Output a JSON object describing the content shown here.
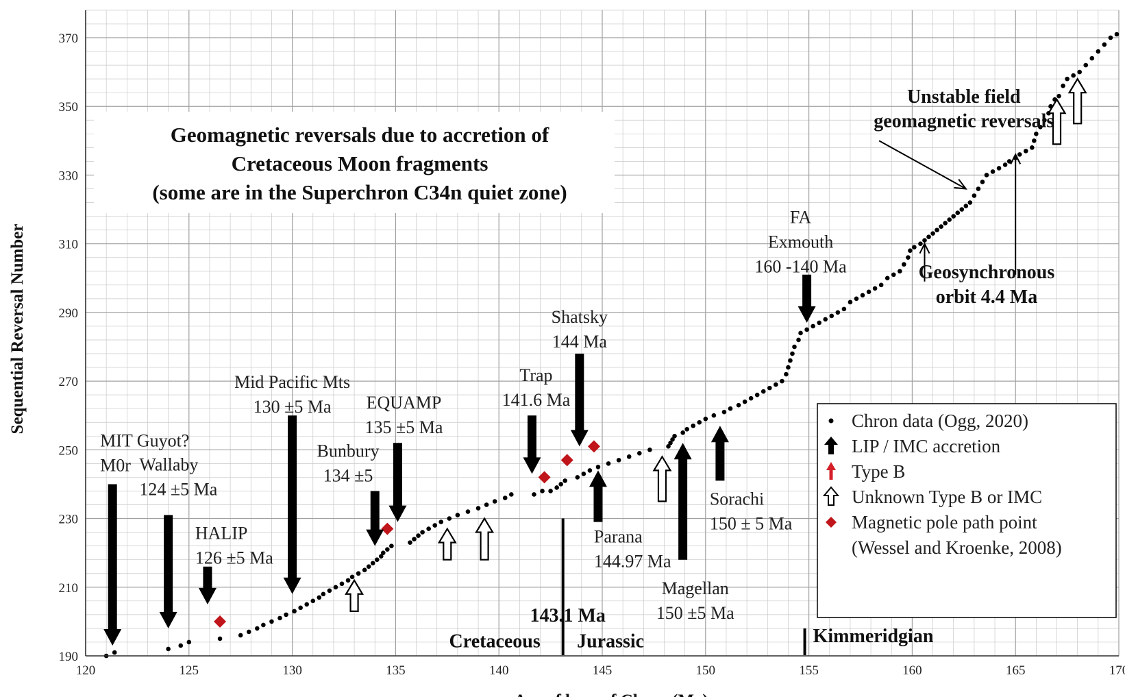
{
  "chart_data": {
    "type": "scatter",
    "title": "Geomagnetic reversals due to accretion of Cretaceous Moon fragments (some are in the Superchron C34n quiet zone)",
    "title_lines": [
      "Geomagnetic reversals due to accretion of",
      "Cretaceous Moon fragments",
      "(some are in the Superchron C34n quiet zone)"
    ],
    "xlabel": "Age of base of Chron (Ma)",
    "ylabel": "Sequential Reversal Number",
    "xlim": [
      120,
      170
    ],
    "ylim": [
      190,
      378
    ],
    "x_ticks": [
      120,
      125,
      130,
      135,
      140,
      145,
      150,
      155,
      160,
      165,
      170
    ],
    "y_ticks": [
      190,
      210,
      230,
      250,
      270,
      290,
      310,
      330,
      350,
      370
    ],
    "grid": true,
    "legend_position": "bottom-right",
    "series": [
      {
        "name": "Chron data (Ogg, 2020)",
        "marker": "dot",
        "color": "#000000",
        "points": [
          [
            121.0,
            190
          ],
          [
            121.4,
            191
          ],
          [
            124.0,
            192
          ],
          [
            124.6,
            193
          ],
          [
            125.0,
            194
          ],
          [
            126.5,
            195
          ],
          [
            127.5,
            196
          ],
          [
            127.9,
            197
          ],
          [
            128.3,
            198
          ],
          [
            128.6,
            199
          ],
          [
            129.0,
            200
          ],
          [
            129.4,
            201
          ],
          [
            129.7,
            202
          ],
          [
            130.1,
            203
          ],
          [
            130.4,
            204
          ],
          [
            130.7,
            205
          ],
          [
            131.0,
            206
          ],
          [
            131.3,
            207
          ],
          [
            131.5,
            208
          ],
          [
            131.8,
            209
          ],
          [
            132.1,
            210
          ],
          [
            132.4,
            211
          ],
          [
            132.7,
            212
          ],
          [
            132.9,
            213
          ],
          [
            133.2,
            214
          ],
          [
            133.5,
            215
          ],
          [
            133.7,
            216
          ],
          [
            133.9,
            217
          ],
          [
            134.1,
            218
          ],
          [
            134.3,
            219
          ],
          [
            134.4,
            220
          ],
          [
            134.6,
            221
          ],
          [
            134.8,
            222
          ],
          [
            135.7,
            223
          ],
          [
            135.9,
            224
          ],
          [
            136.1,
            225
          ],
          [
            136.3,
            226
          ],
          [
            136.6,
            227
          ],
          [
            136.9,
            228
          ],
          [
            137.2,
            229
          ],
          [
            137.6,
            230
          ],
          [
            138.0,
            231
          ],
          [
            138.5,
            232
          ],
          [
            139.0,
            233
          ],
          [
            139.4,
            234
          ],
          [
            139.8,
            235
          ],
          [
            140.3,
            236
          ],
          [
            140.6,
            237
          ],
          [
            141.7,
            237
          ],
          [
            142.1,
            238
          ],
          [
            142.5,
            238
          ],
          [
            142.8,
            239
          ],
          [
            143.0,
            240
          ],
          [
            143.2,
            241
          ],
          [
            143.8,
            242
          ],
          [
            144.1,
            243
          ],
          [
            144.4,
            244
          ],
          [
            144.8,
            245
          ],
          [
            145.3,
            246
          ],
          [
            145.8,
            247
          ],
          [
            146.3,
            248
          ],
          [
            146.8,
            249
          ],
          [
            147.3,
            250
          ],
          [
            148.2,
            251
          ],
          [
            148.3,
            252
          ],
          [
            148.4,
            253
          ],
          [
            148.5,
            254
          ],
          [
            148.9,
            255
          ],
          [
            149.1,
            256
          ],
          [
            149.4,
            257
          ],
          [
            149.7,
            258
          ],
          [
            150.0,
            259
          ],
          [
            150.4,
            260
          ],
          [
            150.9,
            261
          ],
          [
            151.2,
            262
          ],
          [
            151.6,
            263
          ],
          [
            151.9,
            264
          ],
          [
            152.2,
            265
          ],
          [
            152.5,
            266
          ],
          [
            152.8,
            267
          ],
          [
            153.1,
            268
          ],
          [
            153.4,
            269
          ],
          [
            153.7,
            270
          ],
          [
            153.9,
            272
          ],
          [
            154.0,
            274
          ],
          [
            154.1,
            276
          ],
          [
            154.2,
            278
          ],
          [
            154.3,
            280
          ],
          [
            154.5,
            282
          ],
          [
            154.6,
            284
          ],
          [
            154.9,
            285
          ],
          [
            155.2,
            286
          ],
          [
            155.5,
            287
          ],
          [
            155.8,
            288
          ],
          [
            156.1,
            289
          ],
          [
            156.4,
            290
          ],
          [
            156.7,
            291
          ],
          [
            157.0,
            293
          ],
          [
            157.3,
            294
          ],
          [
            157.6,
            295
          ],
          [
            157.9,
            296
          ],
          [
            158.2,
            297
          ],
          [
            158.5,
            298
          ],
          [
            158.8,
            300
          ],
          [
            159.1,
            301
          ],
          [
            159.4,
            302
          ],
          [
            159.6,
            304
          ],
          [
            159.8,
            306
          ],
          [
            159.9,
            308
          ],
          [
            160.1,
            309
          ],
          [
            160.4,
            310
          ],
          [
            160.6,
            311
          ],
          [
            160.8,
            312
          ],
          [
            161.0,
            313
          ],
          [
            161.2,
            314
          ],
          [
            161.4,
            315
          ],
          [
            161.6,
            316
          ],
          [
            161.8,
            317
          ],
          [
            162.0,
            318
          ],
          [
            162.2,
            319
          ],
          [
            162.4,
            320
          ],
          [
            162.6,
            321
          ],
          [
            162.8,
            322
          ],
          [
            163.0,
            324
          ],
          [
            163.2,
            326
          ],
          [
            163.4,
            328
          ],
          [
            163.6,
            330
          ],
          [
            163.9,
            331
          ],
          [
            164.2,
            332
          ],
          [
            164.5,
            333
          ],
          [
            164.7,
            334
          ],
          [
            165.0,
            335
          ],
          [
            165.2,
            336
          ],
          [
            165.5,
            337
          ],
          [
            165.8,
            338
          ],
          [
            165.9,
            340
          ],
          [
            166.0,
            342
          ],
          [
            166.2,
            344
          ],
          [
            166.4,
            346
          ],
          [
            166.6,
            348
          ],
          [
            166.7,
            350
          ],
          [
            166.9,
            352
          ],
          [
            167.1,
            353
          ],
          [
            167.3,
            356
          ],
          [
            167.5,
            358
          ],
          [
            167.8,
            359
          ],
          [
            168.1,
            360
          ],
          [
            168.4,
            362
          ],
          [
            168.7,
            364
          ],
          [
            169.0,
            366
          ],
          [
            169.3,
            368
          ],
          [
            169.6,
            370
          ],
          [
            169.9,
            371
          ]
        ]
      },
      {
        "name": "Magnetic pole path point (Wessel and Kroenke, 2008)",
        "marker": "diamond",
        "color": "#c0151b",
        "points": [
          [
            126.5,
            200
          ],
          [
            134.6,
            227
          ],
          [
            142.2,
            242
          ],
          [
            143.3,
            247
          ],
          [
            144.6,
            251
          ]
        ]
      }
    ],
    "arrows_filled": [
      {
        "x": 121.3,
        "y_from": 240,
        "y_to": 193
      },
      {
        "x": 124.0,
        "y_from": 231,
        "y_to": 198
      },
      {
        "x": 125.9,
        "y_from": 216,
        "y_to": 205
      },
      {
        "x": 130.0,
        "y_from": 260,
        "y_to": 208
      },
      {
        "x": 134.0,
        "y_from": 238,
        "y_to": 222
      },
      {
        "x": 135.1,
        "y_from": 252,
        "y_to": 229
      },
      {
        "x": 141.6,
        "y_from": 260,
        "y_to": 243
      },
      {
        "x": 143.9,
        "y_from": 278,
        "y_to": 251
      },
      {
        "x": 144.8,
        "y_from": 229,
        "y_to": 244
      },
      {
        "x": 148.9,
        "y_from": 218,
        "y_to": 252
      },
      {
        "x": 150.7,
        "y_from": 241,
        "y_to": 257
      },
      {
        "x": 154.9,
        "y_from": 301,
        "y_to": 287
      }
    ],
    "arrows_open": [
      {
        "x": 133.0,
        "y_from": 203,
        "y_to": 212
      },
      {
        "x": 137.5,
        "y_from": 218,
        "y_to": 227
      },
      {
        "x": 139.3,
        "y_from": 218,
        "y_to": 230
      },
      {
        "x": 147.9,
        "y_from": 235,
        "y_to": 248
      },
      {
        "x": 167.0,
        "y_from": 339,
        "y_to": 352
      },
      {
        "x": 168.0,
        "y_from": 345,
        "y_to": 358
      }
    ],
    "arrows_thin": [
      {
        "x": 160.6,
        "y_from": 299,
        "y_to": 310
      },
      {
        "x": 165.0,
        "y_from": 301,
        "y_to": 336
      }
    ],
    "annotations": [
      {
        "lines": [
          "MIT Guyot?",
          "M0r"
        ],
        "x": 120.7,
        "y": 251,
        "anchor": "start",
        "style": "normal"
      },
      {
        "lines": [
          "Wallaby",
          "124 ±5 Ma"
        ],
        "x": 122.6,
        "y": 244,
        "anchor": "start",
        "style": "normal"
      },
      {
        "lines": [
          "HALIP",
          "126 ±5 Ma"
        ],
        "x": 125.3,
        "y": 224,
        "anchor": "start",
        "style": "normal"
      },
      {
        "lines": [
          "Mid Pacific Mts",
          "130 ±5 Ma"
        ],
        "x": 130.0,
        "y": 268,
        "anchor": "middle",
        "style": "normal"
      },
      {
        "lines": [
          "Bunbury",
          "134 ±5"
        ],
        "x": 132.7,
        "y": 248,
        "anchor": "middle",
        "style": "normal"
      },
      {
        "lines": [
          "EQUAMP",
          "135 ±5 Ma"
        ],
        "x": 135.4,
        "y": 262,
        "anchor": "middle",
        "style": "normal"
      },
      {
        "lines": [
          "Trap",
          "141.6 Ma"
        ],
        "x": 141.8,
        "y": 270,
        "anchor": "middle",
        "style": "normal"
      },
      {
        "lines": [
          "Shatsky",
          "144 Ma"
        ],
        "x": 143.9,
        "y": 287,
        "anchor": "middle",
        "style": "normal"
      },
      {
        "lines": [
          "Parana",
          "144.97 Ma"
        ],
        "x": 144.6,
        "y": 223,
        "anchor": "start",
        "style": "normal"
      },
      {
        "lines": [
          "Magellan",
          "150 ±5 Ma"
        ],
        "x": 149.5,
        "y": 208,
        "anchor": "middle",
        "style": "normal"
      },
      {
        "lines": [
          "Sorachi",
          "150 ± 5 Ma"
        ],
        "x": 150.2,
        "y": 234,
        "anchor": "start",
        "style": "normal"
      },
      {
        "lines": [
          "FA",
          "Exmouth",
          "160 -140 Ma"
        ],
        "x": 154.6,
        "y": 316,
        "anchor": "middle",
        "style": "normal"
      },
      {
        "lines": [
          "Geosynchronous",
          "orbit   4.4 Ma"
        ],
        "x": 163.6,
        "y": 300,
        "anchor": "middle",
        "style": "bold"
      },
      {
        "lines": [
          "Unstable field"
        ],
        "x": 162.5,
        "y": 351,
        "anchor": "middle",
        "style": "bold-large"
      },
      {
        "lines": [
          "geomagnetic reversals"
        ],
        "x": 162.5,
        "y": 344,
        "anchor": "middle",
        "style": "bold"
      },
      {
        "lines": [
          "143.1    Ma"
        ],
        "x": 141.5,
        "y": 200,
        "anchor": "start",
        "style": "bold"
      },
      {
        "lines": [
          "Cretaceous"
        ],
        "x": 139.8,
        "y": 192.5,
        "anchor": "middle",
        "style": "bold"
      },
      {
        "lines": [
          "Jurassic"
        ],
        "x": 145.4,
        "y": 192.5,
        "anchor": "middle",
        "style": "bold"
      },
      {
        "lines": [
          "Kimmeridgian"
        ],
        "x": 155.2,
        "y": 194,
        "anchor": "start",
        "style": "bold"
      }
    ],
    "boundaries": [
      {
        "x": 143.1,
        "y_from": 188.5,
        "y_to": 230
      },
      {
        "x": 154.8,
        "y_from": 188.5,
        "y_to": 198
      }
    ],
    "pointer": {
      "x_from": 158.4,
      "y_from": 340,
      "x_to": 162.6,
      "y_to": 326
    },
    "legend": [
      {
        "marker": "dot",
        "label": "Chron data (Ogg, 2020)"
      },
      {
        "marker": "black-arrow",
        "label": "LIP  / IMC accretion"
      },
      {
        "marker": "red-arrow",
        "label": "Type B"
      },
      {
        "marker": "open-arrow",
        "label": "Unknown Type B or IMC"
      },
      {
        "marker": "diamond",
        "label": "Magnetic pole path point"
      },
      {
        "marker": "none",
        "label": "(Wessel and Kroenke, 2008)"
      }
    ]
  }
}
